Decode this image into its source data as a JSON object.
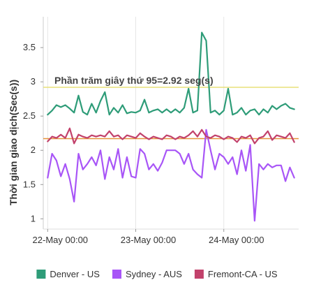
{
  "chart_data": {
    "type": "line",
    "title": "",
    "xlabel": "",
    "ylabel": "Thời gian giao dịch(Sec(s))",
    "ylim": [
      0.85,
      3.95
    ],
    "yticks": [
      1,
      1.5,
      2,
      2.5,
      3,
      3.5
    ],
    "ytick_labels": [
      "1",
      "1.5",
      "2",
      "2.5",
      "3",
      "3.5"
    ],
    "xlim": [
      -0.05,
      2.85
    ],
    "xticks": [
      0,
      1,
      2
    ],
    "xtick_labels": [
      "22-May 00:00",
      "23-May 00:00",
      "24-May 00:00"
    ],
    "grid": "vertical",
    "legend_position": "bottom",
    "annotations": [
      {
        "label": "Phần trăm giây thứ 95=2.92 seg(s)",
        "value": 2.92,
        "color": "#e8e07a"
      },
      {
        "label": "",
        "value": 2.17,
        "color": "#e6923a"
      }
    ],
    "x": [
      0,
      0.05,
      0.1,
      0.15,
      0.2,
      0.25,
      0.3,
      0.35,
      0.4,
      0.45,
      0.5,
      0.55,
      0.6,
      0.65,
      0.7,
      0.75,
      0.8,
      0.85,
      0.9,
      0.95,
      1.0,
      1.05,
      1.1,
      1.15,
      1.2,
      1.25,
      1.3,
      1.35,
      1.4,
      1.45,
      1.5,
      1.55,
      1.6,
      1.65,
      1.7,
      1.75,
      1.8,
      1.85,
      1.9,
      1.95,
      2.0,
      2.05,
      2.1,
      2.15,
      2.2,
      2.25,
      2.3,
      2.35,
      2.4,
      2.45,
      2.5,
      2.55,
      2.6,
      2.65,
      2.7,
      2.75,
      2.8
    ],
    "series": [
      {
        "name": "Denver - US",
        "color": "#2e9c78",
        "values": [
          2.52,
          2.58,
          2.66,
          2.63,
          2.66,
          2.61,
          2.55,
          2.8,
          2.56,
          2.52,
          2.68,
          2.55,
          2.72,
          2.85,
          2.52,
          2.62,
          2.55,
          2.66,
          2.54,
          2.56,
          2.55,
          2.58,
          2.74,
          2.55,
          2.58,
          2.6,
          2.55,
          2.6,
          2.55,
          2.6,
          2.55,
          2.62,
          2.9,
          2.55,
          2.58,
          3.72,
          3.6,
          2.55,
          2.58,
          2.52,
          2.58,
          2.9,
          2.52,
          2.55,
          2.62,
          2.52,
          2.58,
          2.6,
          2.52,
          2.6,
          2.55,
          2.65,
          2.6,
          2.65,
          2.68,
          2.62,
          2.6
        ]
      },
      {
        "name": "Sydney - AUS",
        "color": "#a855f7",
        "values": [
          1.6,
          1.95,
          1.85,
          1.62,
          1.8,
          1.58,
          1.25,
          1.95,
          1.72,
          1.8,
          1.9,
          1.78,
          2.0,
          1.58,
          1.9,
          1.72,
          2.02,
          1.6,
          1.9,
          1.62,
          1.6,
          2.02,
          1.95,
          1.72,
          1.8,
          1.7,
          1.82,
          2.0,
          2.0,
          2.0,
          1.95,
          1.8,
          1.95,
          1.72,
          1.65,
          1.6,
          2.3,
          2.0,
          1.72,
          1.95,
          1.9,
          1.8,
          1.9,
          1.65,
          2.0,
          1.7,
          2.08,
          0.97,
          1.8,
          1.72,
          1.8,
          1.75,
          1.78,
          1.78,
          1.55,
          1.75,
          1.6
        ]
      },
      {
        "name": "Fremont-CA - US",
        "color": "#c2416b",
        "values": [
          2.13,
          2.2,
          2.18,
          2.23,
          2.18,
          2.32,
          2.1,
          2.23,
          2.2,
          2.18,
          2.22,
          2.2,
          2.22,
          2.2,
          2.28,
          2.2,
          2.22,
          2.16,
          2.22,
          2.2,
          2.18,
          2.25,
          2.2,
          2.16,
          2.2,
          2.18,
          2.16,
          2.22,
          2.2,
          2.16,
          2.2,
          2.18,
          2.22,
          2.28,
          2.2,
          2.3,
          2.2,
          2.18,
          2.22,
          2.2,
          2.16,
          2.2,
          2.18,
          2.12,
          2.2,
          2.18,
          2.22,
          2.1,
          2.18,
          2.2,
          2.28,
          2.15,
          2.22,
          2.2,
          2.18,
          2.25,
          2.12
        ]
      }
    ]
  }
}
